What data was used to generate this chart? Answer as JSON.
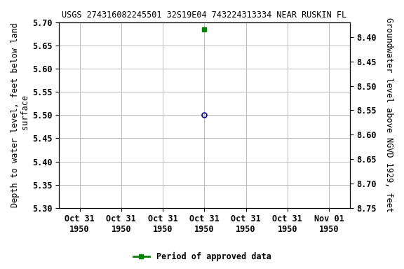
{
  "title": "USGS 274316082245501 32S19E04 743224313334 NEAR RUSKIN FL",
  "left_ylabel": "Depth to water level, feet below land\n surface",
  "right_ylabel": "Groundwater level above NGVD 1929, feet",
  "ylim_left_top": 5.3,
  "ylim_left_bottom": 5.7,
  "ylim_right_top": 8.75,
  "ylim_right_bottom": 8.37,
  "y_ticks_left": [
    5.3,
    5.35,
    5.4,
    5.45,
    5.5,
    5.55,
    5.6,
    5.65,
    5.7
  ],
  "y_ticks_right": [
    8.75,
    8.7,
    8.65,
    8.6,
    8.55,
    8.5,
    8.45,
    8.4
  ],
  "x_tick_positions": [
    0,
    1,
    2,
    3,
    4,
    5,
    6
  ],
  "x_tick_labels": [
    "Oct 31\n1950",
    "Oct 31\n1950",
    "Oct 31\n1950",
    "Oct 31\n1950",
    "Oct 31\n1950",
    "Oct 31\n1950",
    "Nov 01\n1950"
  ],
  "data_point_blue_x": 3.0,
  "data_point_blue_y": 5.5,
  "data_point_green_x": 3.0,
  "data_point_green_y": 5.685,
  "legend_label": "Period of approved data",
  "legend_color": "#008800",
  "blue_color": "#0000cc",
  "background_color": "#ffffff",
  "grid_color": "#bbbbbb",
  "title_fontsize": 8.5,
  "label_fontsize": 8.5,
  "tick_fontsize": 8.5
}
